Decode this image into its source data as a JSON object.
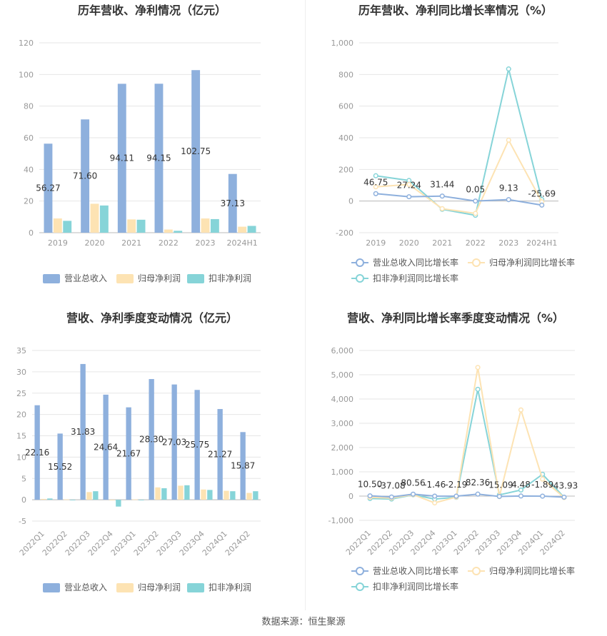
{
  "footer": "数据来源：恒生聚源",
  "colors": {
    "revenue": "#8eb0dd",
    "net_profit": "#fde3b3",
    "deducted_profit": "#86d4d8",
    "grid": "#e6e6e6",
    "axis_text": "#999999",
    "title": "#333333"
  },
  "chart_data": [
    {
      "id": "annual-amount",
      "type": "bar",
      "title": "历年营收、净利情况（亿元）",
      "categories": [
        "2019",
        "2020",
        "2021",
        "2022",
        "2023",
        "2024H1"
      ],
      "series": [
        {
          "name": "营业总收入",
          "values": [
            56.27,
            71.6,
            94.11,
            94.15,
            102.75,
            37.13
          ],
          "labels": [
            "56.27",
            "71.60",
            "94.11",
            "94.15",
            "102.75",
            "37.13"
          ]
        },
        {
          "name": "归母净利润",
          "values": [
            9.0,
            18.3,
            8.4,
            2.0,
            9.0,
            3.8
          ]
        },
        {
          "name": "扣非净利润",
          "values": [
            7.5,
            17.2,
            8.2,
            1.2,
            8.6,
            4.3
          ]
        }
      ],
      "yticks": [
        0,
        20,
        40,
        60,
        80,
        100,
        120
      ],
      "ylim": [
        0,
        120
      ],
      "legend": "bottom"
    },
    {
      "id": "annual-growth",
      "type": "line",
      "title": "历年营收、净利同比增长率情况（%）",
      "categories": [
        "2019",
        "2020",
        "2021",
        "2022",
        "2023",
        "2024H1"
      ],
      "series": [
        {
          "name": "营业总收入同比增长率",
          "values": [
            46.75,
            27.24,
            31.44,
            0.05,
            9.13,
            -25.69
          ],
          "labels": [
            "46.75",
            "27.24",
            "31.44",
            "0.05",
            "9.13",
            "-25.69"
          ]
        },
        {
          "name": "归母净利润同比增长率",
          "values": [
            90,
            105,
            -48,
            -78,
            385,
            -5
          ]
        },
        {
          "name": "扣非净利润同比增长率",
          "values": [
            160,
            130,
            -52,
            -90,
            835,
            10
          ]
        }
      ],
      "yticks": [
        -200,
        0,
        200,
        400,
        600,
        800,
        1000
      ],
      "ytick_labels": [
        "-200",
        "0",
        "200",
        "400",
        "600",
        "800",
        "1,000"
      ],
      "ylim": [
        -200,
        1000
      ],
      "legend": "bottom"
    },
    {
      "id": "quarterly-amount",
      "type": "bar",
      "title": "营收、净利季度变动情况（亿元）",
      "categories": [
        "2022Q1",
        "2022Q2",
        "2022Q3",
        "2022Q4",
        "2023Q1",
        "2023Q2",
        "2023Q3",
        "2023Q4",
        "2024Q1",
        "2024Q2"
      ],
      "series": [
        {
          "name": "营业总收入",
          "values": [
            22.16,
            15.52,
            31.83,
            24.64,
            21.67,
            28.3,
            27.03,
            25.75,
            21.27,
            15.87
          ],
          "labels": [
            "22.16",
            "15.52",
            "31.83",
            "24.64",
            "21.67",
            "28.30",
            "27.03",
            "25.75",
            "21.27",
            "15.87"
          ]
        },
        {
          "name": "归母净利润",
          "values": [
            0.2,
            0.1,
            1.8,
            -0.1,
            0.1,
            2.9,
            3.3,
            2.4,
            2.1,
            1.6
          ]
        },
        {
          "name": "扣非净利润",
          "values": [
            0.3,
            0.0,
            2.0,
            -1.6,
            0.0,
            2.7,
            3.4,
            2.3,
            2.0,
            2.0
          ]
        }
      ],
      "yticks": [
        -5,
        0,
        5,
        10,
        15,
        20,
        25,
        30,
        35
      ],
      "ylim": [
        -5,
        35
      ],
      "legend": "bottom"
    },
    {
      "id": "quarterly-growth",
      "type": "line",
      "title": "营收、净利同比增长率季度变动情况（%）",
      "categories": [
        "2022Q1",
        "2022Q2",
        "2022Q3",
        "2022Q4",
        "2023Q1",
        "2023Q2",
        "2023Q3",
        "2023Q4",
        "2024Q1",
        "2024Q2"
      ],
      "series": [
        {
          "name": "营业总收入同比增长率",
          "values": [
            10.5,
            -37.08,
            80.56,
            -1.46,
            -2.19,
            82.36,
            -15.09,
            4.48,
            -1.89,
            -43.93
          ],
          "labels": [
            "10.50",
            "-37.08",
            "80.56",
            "-1.46",
            "-2.19",
            "82.36",
            "-15.09",
            "4.48",
            "-1.89",
            "-43.93"
          ]
        },
        {
          "name": "归母净利润同比增长率",
          "values": [
            -50,
            -80,
            60,
            -280,
            -40,
            5300,
            -20,
            3550,
            700,
            -60
          ]
        },
        {
          "name": "扣非净利润同比增长率",
          "values": [
            -100,
            -120,
            50,
            -120,
            -50,
            4400,
            50,
            250,
            900,
            -50
          ]
        }
      ],
      "yticks": [
        -1000,
        0,
        1000,
        2000,
        3000,
        4000,
        5000,
        6000
      ],
      "ytick_labels": [
        "-1,000",
        "0",
        "1,000",
        "2,000",
        "3,000",
        "4,000",
        "5,000",
        "6,000"
      ],
      "ylim": [
        -1000,
        6000
      ],
      "legend": "bottom"
    }
  ]
}
